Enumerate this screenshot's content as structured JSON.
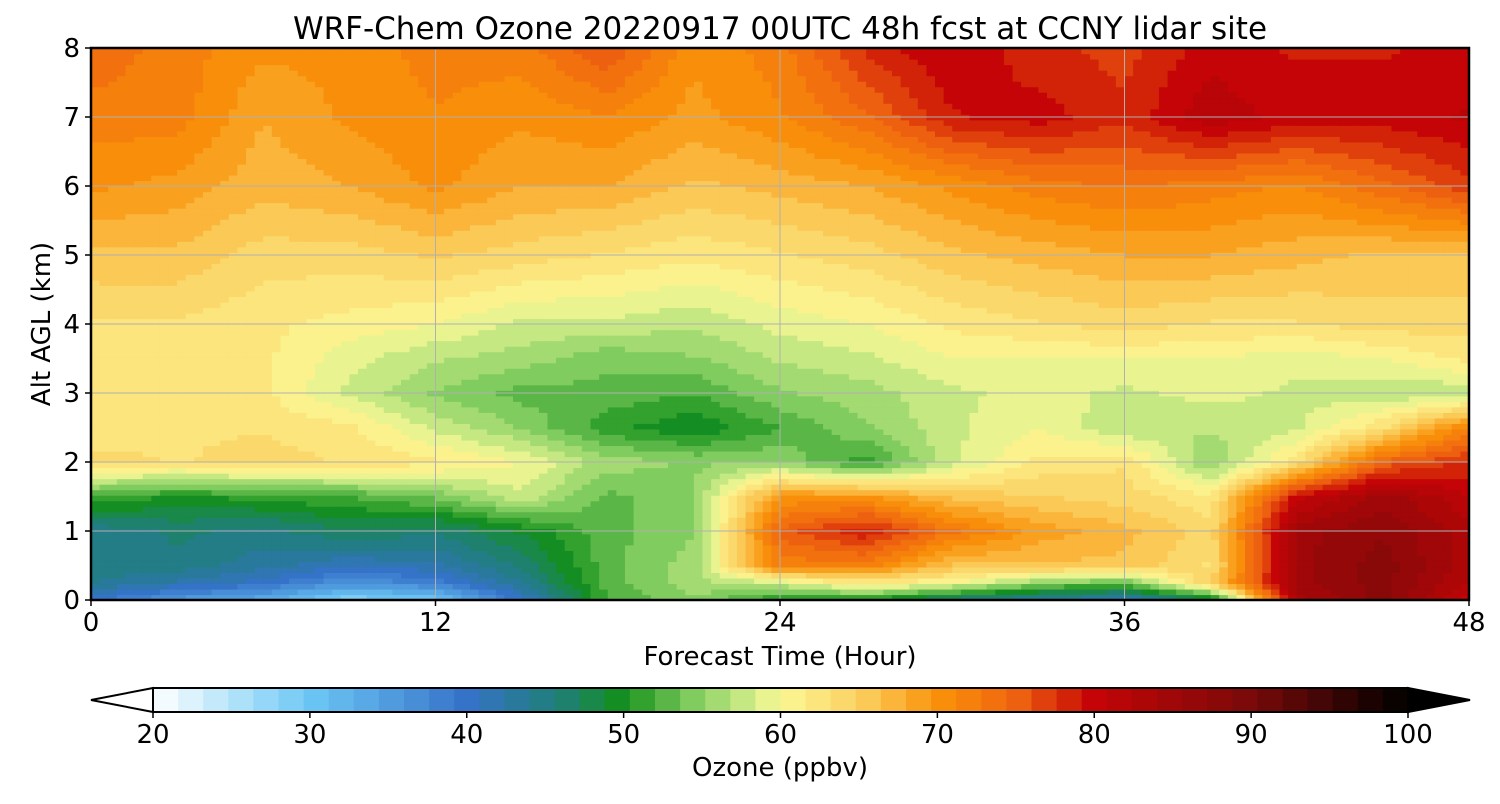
{
  "chart_data": {
    "type": "heatmap",
    "subtype": "filled-contour",
    "title": "WRF-Chem Ozone  20220917 00UTC 48h fcst at CCNY lidar site",
    "xlabel": "Forecast Time (Hour)",
    "ylabel": "Alt AGL (km)",
    "xlim": [
      0,
      48
    ],
    "ylim": [
      0,
      8
    ],
    "xticks": [
      0,
      12,
      24,
      36,
      48
    ],
    "yticks": [
      0,
      1,
      2,
      3,
      4,
      5,
      6,
      7,
      8
    ],
    "grid": true,
    "x": [
      0,
      3,
      6,
      9,
      12,
      15,
      18,
      21,
      24,
      27,
      30,
      33,
      36,
      39,
      42,
      45,
      48
    ],
    "y": [
      0,
      0.25,
      0.5,
      1,
      1.5,
      2,
      2.5,
      3,
      3.5,
      4,
      5,
      6,
      7,
      8
    ],
    "z": [
      [
        40,
        35,
        33,
        28,
        30,
        40,
        52,
        55,
        50,
        50,
        45,
        43,
        41,
        47,
        83,
        88,
        80
      ],
      [
        44,
        42,
        40,
        36,
        38,
        44,
        53,
        56,
        58,
        62,
        60,
        55,
        53,
        65,
        85,
        88,
        82
      ],
      [
        45,
        45,
        43,
        41,
        42,
        46,
        53,
        56,
        72,
        72,
        66,
        66,
        66,
        63,
        85,
        88,
        83
      ],
      [
        44,
        46,
        45,
        47,
        46,
        49,
        53,
        55,
        75,
        79,
        73,
        69,
        67,
        64,
        85,
        87,
        83
      ],
      [
        52,
        50,
        51,
        52,
        54,
        58,
        53,
        55,
        70,
        70,
        66,
        65,
        64,
        62,
        80,
        85,
        81
      ],
      [
        64,
        63,
        64,
        63,
        62,
        60,
        56,
        55,
        55,
        51,
        58,
        62,
        63,
        55,
        63,
        75,
        78
      ],
      [
        62,
        63,
        63,
        62,
        58,
        55,
        51,
        49,
        52,
        55,
        58,
        60,
        57,
        57,
        58,
        63,
        72
      ],
      [
        62,
        62,
        62,
        58,
        55,
        53,
        53,
        52,
        55,
        56,
        58,
        59,
        58,
        59,
        58,
        57,
        57
      ],
      [
        63,
        62,
        62,
        59,
        57,
        56,
        54,
        55,
        57,
        58,
        60,
        60,
        60,
        60,
        59,
        60,
        62
      ],
      [
        63,
        63,
        62,
        61,
        60,
        58,
        58,
        57,
        59,
        60,
        62,
        63,
        64,
        63,
        63,
        64,
        64
      ],
      [
        66,
        66,
        64,
        64,
        65,
        64,
        63,
        62,
        63,
        64,
        66,
        67,
        68,
        68,
        67,
        66,
        66
      ],
      [
        70,
        69,
        67,
        68,
        70,
        68,
        68,
        66,
        67,
        68,
        70,
        72,
        73,
        72,
        71,
        74,
        77
      ],
      [
        72,
        72,
        68,
        70,
        71,
        70,
        71,
        69,
        71,
        74,
        79,
        80,
        78,
        82,
        80,
        80,
        81
      ],
      [
        74,
        72,
        70,
        70,
        72,
        72,
        76,
        70,
        72,
        78,
        81,
        78,
        77,
        80,
        79,
        79,
        80
      ]
    ],
    "colorbar": {
      "label": "Ozone  (ppbv)",
      "min": 20,
      "max": 100,
      "ticks": [
        20,
        30,
        40,
        50,
        60,
        70,
        80,
        90,
        100
      ],
      "extend": "both",
      "stops": [
        {
          "v": 20,
          "color": "#ffffff"
        },
        {
          "v": 30,
          "color": "#6cc7f5"
        },
        {
          "v": 40,
          "color": "#3573c8"
        },
        {
          "v": 46,
          "color": "#1f7f76"
        },
        {
          "v": 50,
          "color": "#13901a"
        },
        {
          "v": 54,
          "color": "#79c85a"
        },
        {
          "v": 58,
          "color": "#cdeb88"
        },
        {
          "v": 60,
          "color": "#fbf996"
        },
        {
          "v": 65,
          "color": "#fbd060"
        },
        {
          "v": 70,
          "color": "#f99209"
        },
        {
          "v": 75,
          "color": "#ef6410"
        },
        {
          "v": 80,
          "color": "#c40406"
        },
        {
          "v": 90,
          "color": "#7a0a0a"
        },
        {
          "v": 100,
          "color": "#000000"
        }
      ]
    }
  }
}
